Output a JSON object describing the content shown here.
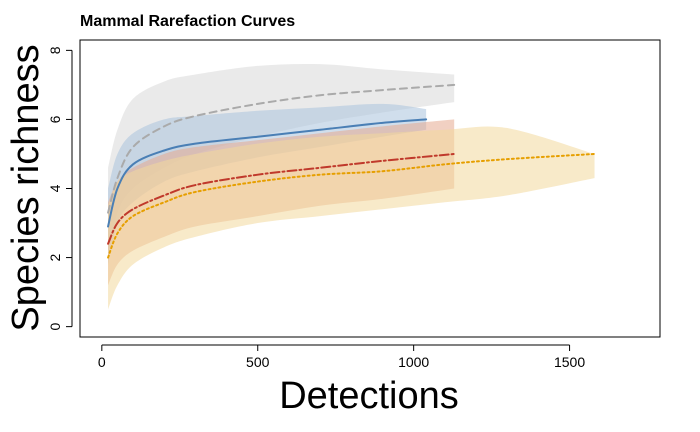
{
  "chart_data": {
    "type": "line",
    "title": "Mammal Rarefaction Curves",
    "xlabel": "Detections",
    "ylabel": "Species richness",
    "xlim": [
      -70,
      1790
    ],
    "ylim": [
      -0.3,
      8.3
    ],
    "xticks": [
      0,
      500,
      1000,
      1500
    ],
    "yticks": [
      0,
      2,
      4,
      6,
      8
    ],
    "grid": false,
    "legend": "none",
    "series": [
      {
        "color": "#aaaaaa",
        "band_color": "#d9d9d9",
        "linestyle": "dashed",
        "x": [
          20,
          50,
          100,
          200,
          300,
          500,
          700,
          900,
          1130
        ],
        "y": [
          3.3,
          4.3,
          5.2,
          5.8,
          6.1,
          6.45,
          6.7,
          6.85,
          7.0
        ],
        "lower": [
          2.0,
          3.3,
          4.0,
          4.6,
          5.0,
          5.5,
          5.9,
          6.2,
          6.5
        ],
        "upper": [
          4.6,
          5.7,
          6.6,
          7.1,
          7.3,
          7.55,
          7.6,
          7.45,
          7.3
        ]
      },
      {
        "color": "#4a7fb5",
        "band_color": "#a9c2dc",
        "linestyle": "solid",
        "x": [
          20,
          50,
          100,
          200,
          300,
          500,
          700,
          900,
          1040
        ],
        "y": [
          2.9,
          4.0,
          4.7,
          5.1,
          5.3,
          5.5,
          5.7,
          5.9,
          6.0
        ],
        "lower": [
          1.8,
          3.0,
          3.6,
          4.2,
          4.5,
          4.9,
          5.2,
          5.5,
          5.7
        ],
        "upper": [
          4.0,
          5.0,
          5.6,
          6.0,
          6.1,
          6.25,
          6.35,
          6.45,
          6.3
        ]
      },
      {
        "color": "#c0392b",
        "band_color": "#e6a990",
        "linestyle": "dashdot",
        "x": [
          20,
          50,
          100,
          200,
          300,
          500,
          700,
          900,
          1130
        ],
        "y": [
          2.4,
          3.0,
          3.4,
          3.8,
          4.1,
          4.4,
          4.6,
          4.8,
          5.0
        ],
        "lower": [
          1.2,
          1.8,
          2.2,
          2.6,
          2.9,
          3.2,
          3.5,
          3.7,
          4.0
        ],
        "upper": [
          3.6,
          4.2,
          4.6,
          5.0,
          5.2,
          5.4,
          5.6,
          5.8,
          6.0
        ]
      },
      {
        "color": "#e69f00",
        "band_color": "#f3d99c",
        "linestyle": "dotted",
        "x": [
          20,
          50,
          100,
          200,
          300,
          500,
          700,
          900,
          1100,
          1300,
          1580
        ],
        "y": [
          2.0,
          2.7,
          3.2,
          3.6,
          3.9,
          4.2,
          4.4,
          4.5,
          4.7,
          4.85,
          5.0
        ],
        "lower": [
          0.5,
          1.2,
          1.8,
          2.3,
          2.6,
          3.0,
          3.2,
          3.4,
          3.6,
          3.8,
          4.3
        ],
        "upper": [
          3.5,
          4.2,
          4.5,
          4.8,
          5.0,
          5.3,
          5.5,
          5.6,
          5.7,
          5.75,
          5.0
        ]
      }
    ]
  }
}
